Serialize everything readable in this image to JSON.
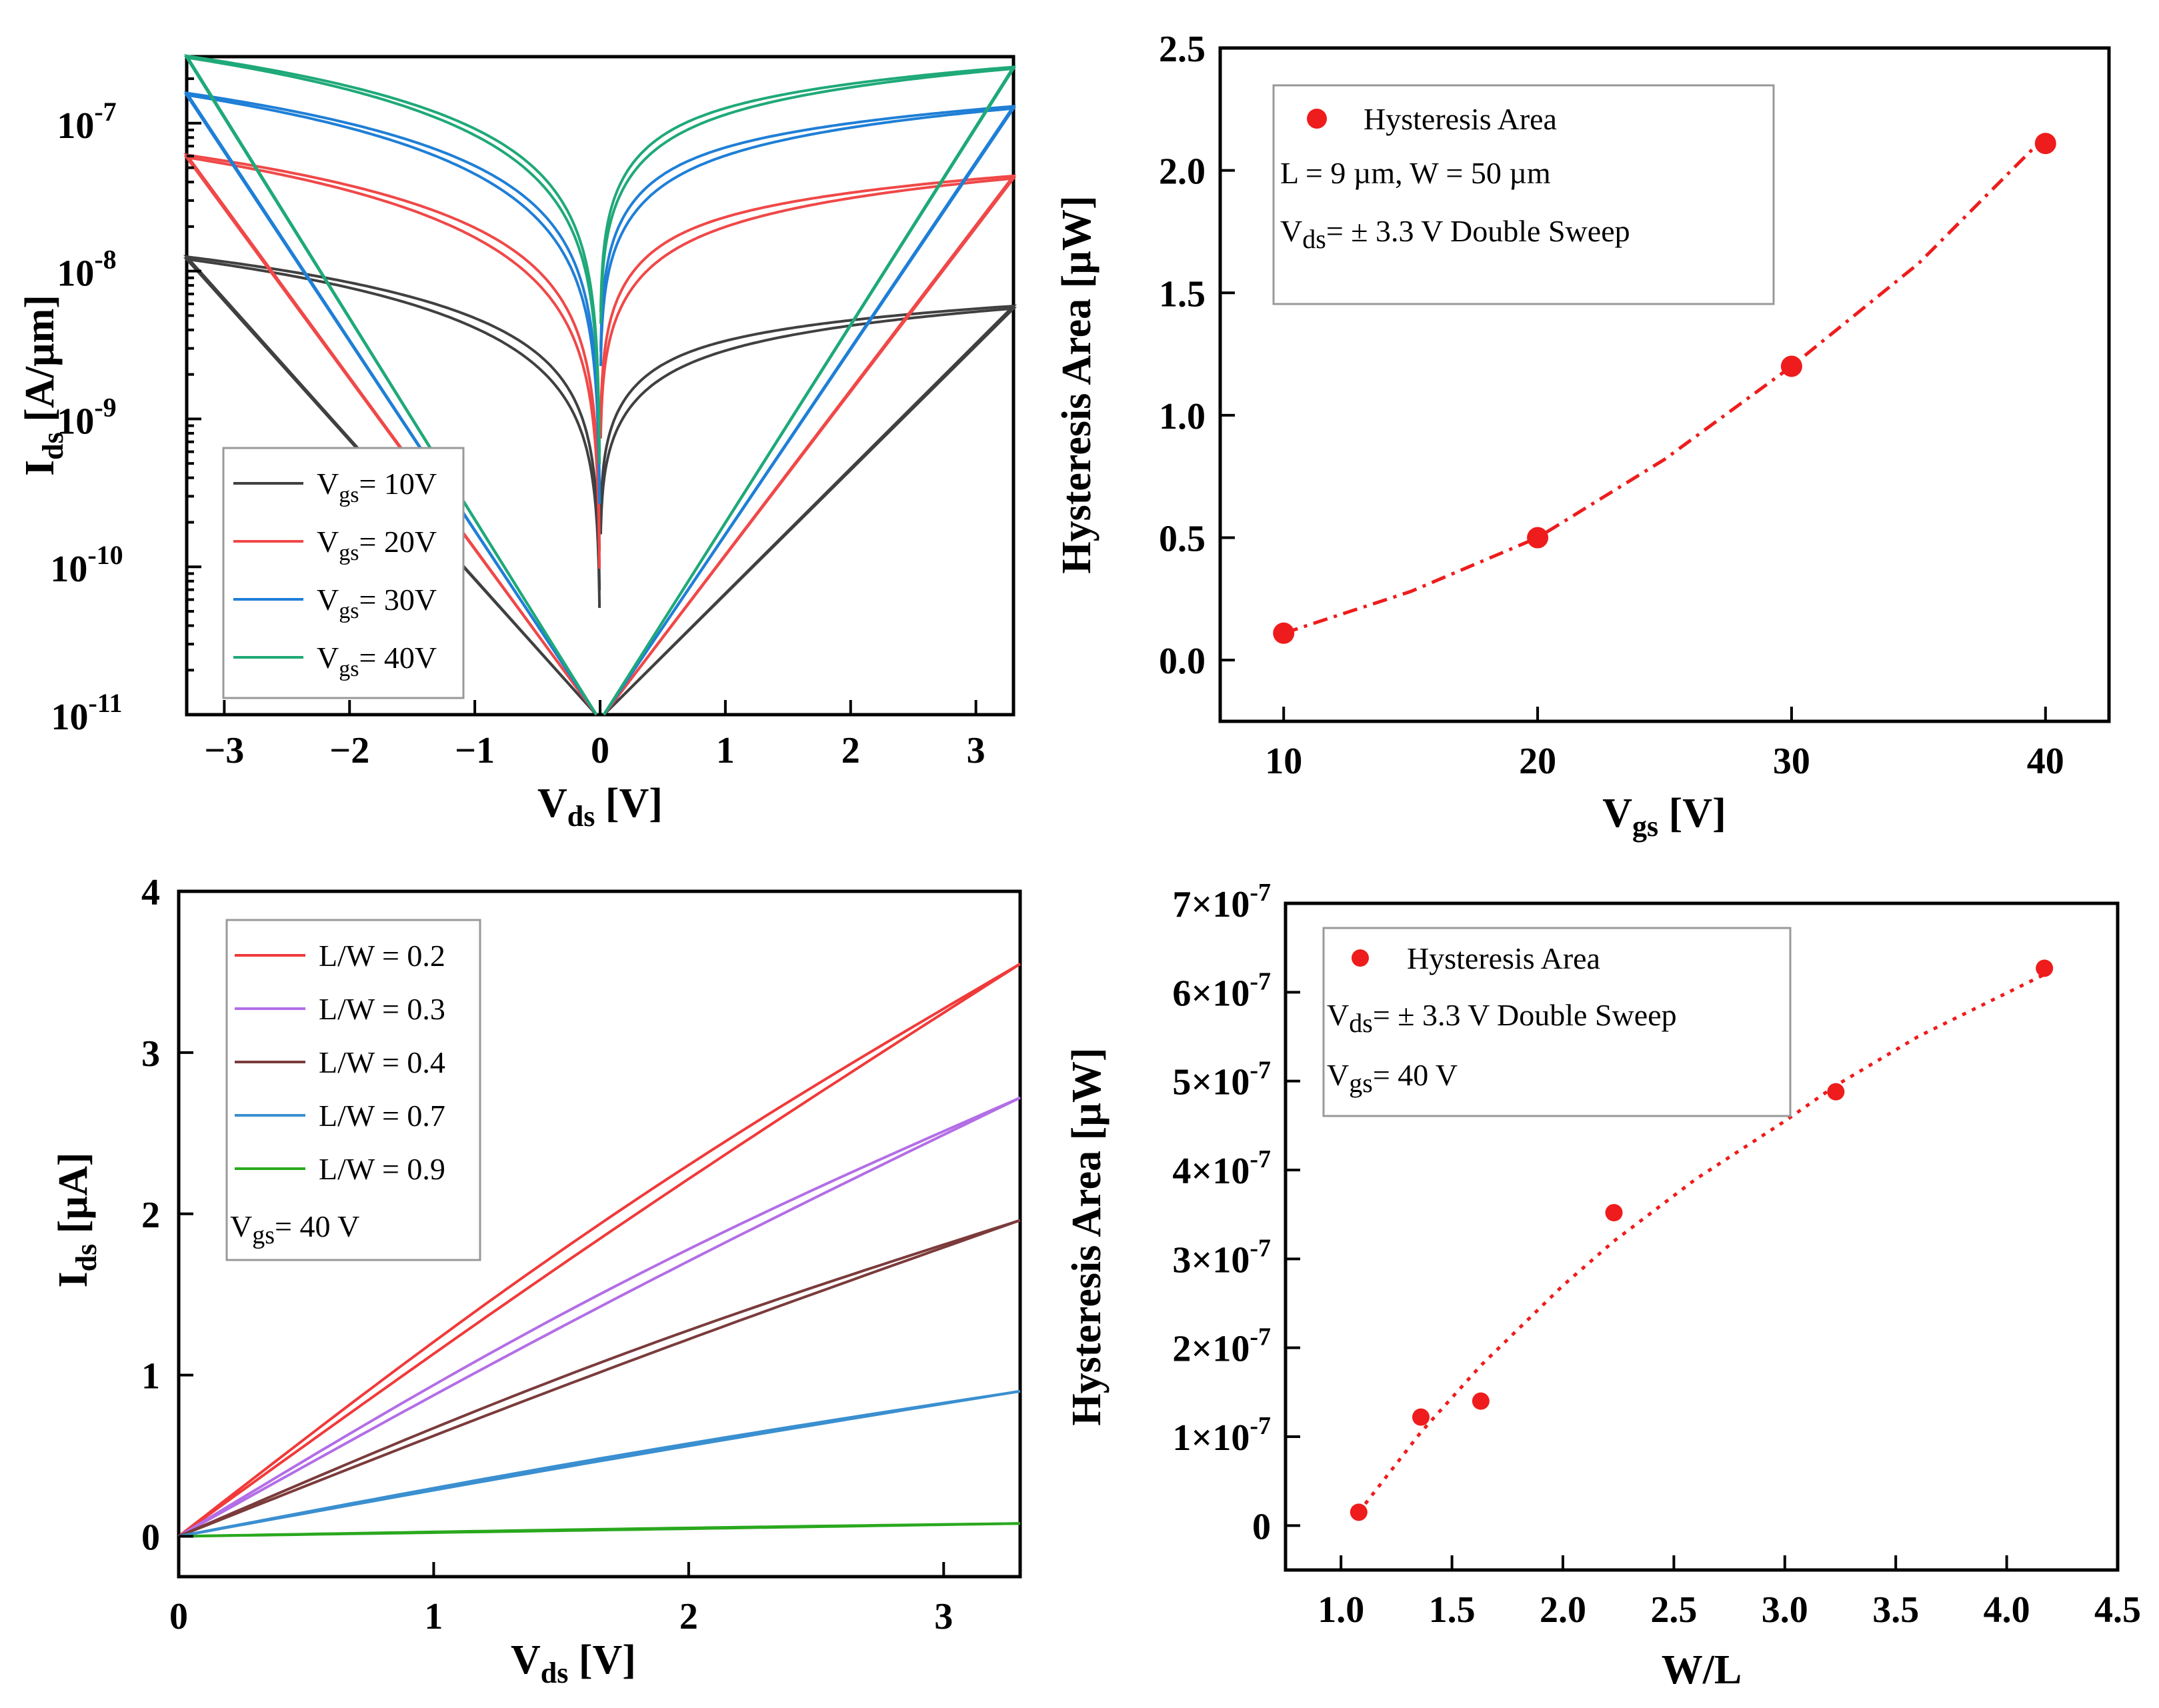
{
  "chart_data": [
    {
      "id": "a",
      "type": "line",
      "yscale": "log",
      "xlabel": "V_ds [V]",
      "ylabel": "I_ds [A/µm]",
      "xlim": [
        -3.3,
        3.3
      ],
      "ylim_exp": [
        -11,
        -6.55
      ],
      "xticks": [
        -3,
        -2,
        -1,
        0,
        1,
        2,
        3
      ],
      "xtick_labels": [
        "−3",
        "−2",
        "−1",
        "0",
        "1",
        "2",
        "3"
      ],
      "yticks_exp": [
        -11,
        -10,
        -9,
        -8,
        -7
      ],
      "ytick_labels": [
        "10-11",
        "10-10",
        "10-9",
        "10-8",
        "10-7"
      ],
      "legend": {
        "position": "bottom-left"
      },
      "series": [
        {
          "name": "Vgs= 10V",
          "sub": "gs",
          "value": "10V",
          "color": "#404040",
          "i_max_left": 1.25e-08,
          "i_max_right": 5.8e-09,
          "exponent": 0.8,
          "split": 0.12
        },
        {
          "name": "Vgs= 20V",
          "sub": "gs",
          "value": "20V",
          "color": "#f04848",
          "i_max_left": 6.1e-08,
          "i_max_right": 4.4e-08,
          "exponent": 0.95,
          "split": 0.12
        },
        {
          "name": "Vgs= 30V",
          "sub": "gs",
          "value": "30V",
          "color": "#1f7fd6",
          "i_max_left": 1.6e-07,
          "i_max_right": 1.3e-07,
          "exponent": 0.95,
          "split": 0.1
        },
        {
          "name": "Vgs= 40V",
          "sub": "gs",
          "value": "40V",
          "color": "#1fa978",
          "i_max_left": 2.85e-07,
          "i_max_right": 2.4e-07,
          "exponent": 0.95,
          "split": 0.08
        }
      ]
    },
    {
      "id": "b",
      "type": "scatter",
      "xlabel": "V_gs [V]",
      "ylabel": "Hysteresis Area [µW]",
      "xlim": [
        7.5,
        42.5
      ],
      "ylim": [
        -0.25,
        2.5
      ],
      "xticks": [
        10,
        20,
        30,
        40
      ],
      "xtick_labels": [
        "10",
        "20",
        "30",
        "40"
      ],
      "yticks": [
        0.0,
        0.5,
        1.0,
        1.5,
        2.0,
        2.5
      ],
      "ytick_labels": [
        "0.0",
        "0.5",
        "1.0",
        "1.5",
        "2.0",
        "2.5"
      ],
      "x": [
        10,
        20,
        30,
        40
      ],
      "y": [
        0.11,
        0.5,
        1.2,
        2.11
      ],
      "fit": {
        "style": "dash-dot",
        "color": "#ee1c1c",
        "x": [
          10,
          15,
          20,
          25,
          30,
          35,
          40
        ],
        "y": [
          0.11,
          0.28,
          0.5,
          0.82,
          1.2,
          1.62,
          2.14
        ]
      },
      "marker_color": "#ee1c1c",
      "legend": {
        "position": "top-left",
        "entries": [
          "Hysteresis Area"
        ]
      },
      "annotations": [
        "L = 9 µm, W = 50 µm",
        "Vds= ± 3.3 V Double Sweep"
      ]
    },
    {
      "id": "c",
      "type": "line",
      "xlabel": "V_ds [V]",
      "ylabel": "I_ds [µA]",
      "xlim": [
        0,
        3.3
      ],
      "ylim": [
        -0.25,
        4
      ],
      "xticks": [
        0,
        1,
        2,
        3
      ],
      "xtick_labels": [
        "0",
        "1",
        "2",
        "3"
      ],
      "yticks": [
        0,
        1,
        2,
        3,
        4
      ],
      "ytick_labels": [
        "0",
        "1",
        "2",
        "3",
        "4"
      ],
      "legend": {
        "position": "top-left"
      },
      "series": [
        {
          "name": "L/W = 0.2",
          "color": "#f03a3a",
          "y_end": 3.55,
          "bow": 0.09,
          "split": 0.07
        },
        {
          "name": "L/W = 0.3",
          "color": "#b36ee6",
          "y_end": 2.72,
          "bow": 0.08,
          "split": 0.06
        },
        {
          "name": "L/W = 0.4",
          "color": "#7b3b3b",
          "y_end": 1.96,
          "bow": 0.05,
          "split": 0.045
        },
        {
          "name": "L/W = 0.7",
          "color": "#3a8fd0",
          "y_end": 0.9,
          "bow": 0.02,
          "split": 0.012
        },
        {
          "name": "L/W = 0.9",
          "color": "#2aa81e",
          "y_end": 0.08,
          "bow": 0.0,
          "split": 0.004
        }
      ],
      "annotations": [
        "Vgs= 40 V"
      ]
    },
    {
      "id": "d",
      "type": "scatter",
      "xlabel": "W/L",
      "ylabel": "Hysteresis Area [µW]",
      "xlim": [
        0.75,
        4.5
      ],
      "ylim": [
        -5e-08,
        7e-07
      ],
      "xticks": [
        1.0,
        1.5,
        2.0,
        2.5,
        3.0,
        3.5,
        4.0,
        4.5
      ],
      "xtick_labels": [
        "1.0",
        "1.5",
        "2.0",
        "2.5",
        "3.0",
        "3.5",
        "4.0",
        "4.5"
      ],
      "yticks": [
        0,
        1e-07,
        2e-07,
        3e-07,
        4e-07,
        5e-07,
        6e-07,
        7e-07
      ],
      "ytick_labels": [
        "0",
        "1×10-7",
        "2×10-7",
        "3×10-7",
        "4×10-7",
        "5×10-7",
        "6×10-7",
        "7×10-7"
      ],
      "x": [
        1.08,
        1.36,
        1.63,
        2.23,
        3.23,
        4.17
      ],
      "y": [
        1.5e-08,
        1.22e-07,
        1.4e-07,
        3.52e-07,
        4.88e-07,
        6.27e-07
      ],
      "fit": {
        "style": "dot",
        "color": "#ee1c1c",
        "x": [
          1.08,
          1.36,
          1.63,
          2.0,
          2.23,
          2.6,
          3.0,
          3.23,
          3.6,
          4.17
        ],
        "y": [
          1.5e-08,
          1.05e-07,
          1.8e-07,
          2.7e-07,
          3.2e-07,
          3.9e-07,
          4.55e-07,
          4.95e-07,
          5.5e-07,
          6.2e-07
        ]
      },
      "marker_color": "#ee1c1c",
      "legend": {
        "position": "top-left",
        "entries": [
          "Hysteresis Area"
        ]
      },
      "annotations": [
        "Vds= ± 3.3 V Double Sweep",
        "Vgs= 40 V"
      ]
    }
  ]
}
